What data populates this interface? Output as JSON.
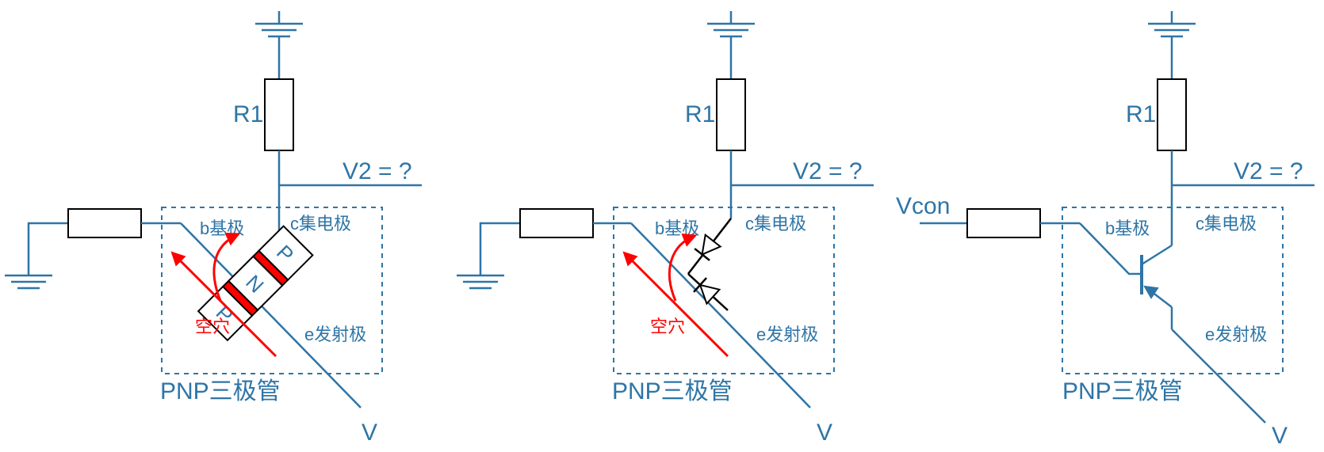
{
  "colors": {
    "wire": "#2e75a6",
    "flow": "#ff0000",
    "component": "#000000",
    "junction": "#ff0000"
  },
  "panels": [
    {
      "id": "physical",
      "r1_label": "R1",
      "v2_label": "V2 = ?",
      "input_label": "",
      "base_label": "b基极",
      "collector_label": "c集电极",
      "emitter_label": "e发射极",
      "device_label": "PNP三极管",
      "supply_label": "V",
      "carrier_label": "空穴",
      "layers": [
        "P",
        "N",
        "P"
      ]
    },
    {
      "id": "diode",
      "r1_label": "R1",
      "v2_label": "V2 = ?",
      "input_label": "",
      "base_label": "b基极",
      "collector_label": "c集电极",
      "emitter_label": "e发射极",
      "device_label": "PNP三极管",
      "supply_label": "V",
      "carrier_label": "空穴"
    },
    {
      "id": "symbol",
      "r1_label": "R1",
      "v2_label": "V2 = ?",
      "input_label": "Vcon",
      "base_label": "b基极",
      "collector_label": "c集电极",
      "emitter_label": "e发射极",
      "device_label": "PNP三极管",
      "supply_label": "V"
    }
  ]
}
